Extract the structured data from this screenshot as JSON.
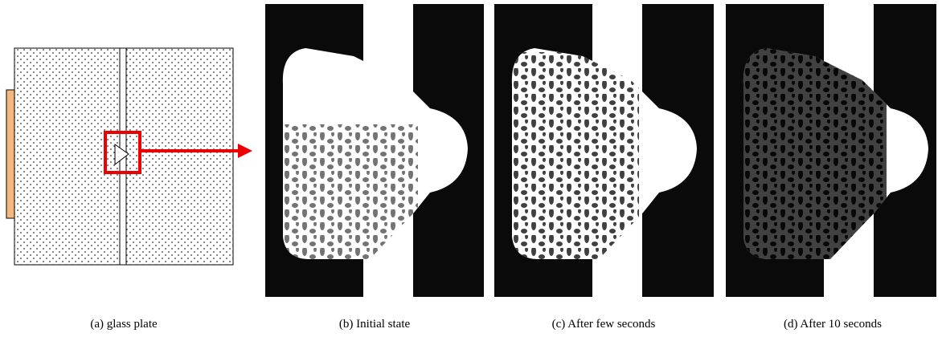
{
  "captions": [
    "(a) glass plate",
    "(b) Initial state",
    "(c) After few seconds",
    "(d) After 10 seconds"
  ]
}
